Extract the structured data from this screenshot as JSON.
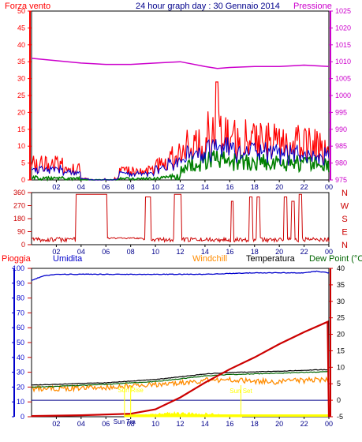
{
  "top_panel": {
    "title": "24 hour graph day : 30 Gennaio 2014",
    "left_label": "Forza vento",
    "right_label": "Pressione",
    "left_ticks": [
      "0",
      "5",
      "10",
      "15",
      "20",
      "25",
      "30",
      "35",
      "40",
      "45",
      "50"
    ],
    "right_ticks": [
      "975",
      "980",
      "985",
      "990",
      "995",
      "1000",
      "1005",
      "1010",
      "1015",
      "1020",
      "1025"
    ],
    "x_ticks": [
      "02",
      "04",
      "06",
      "08",
      "10",
      "12",
      "14",
      "16",
      "18",
      "20",
      "22",
      "00"
    ],
    "colors": {
      "wind": "#ff0000",
      "gust": "#ff0000",
      "avg": "#0000cc",
      "green": "#008000",
      "pressure": "#cc00cc"
    }
  },
  "dir_panel": {
    "left_ticks": [
      "0",
      "90",
      "180",
      "270",
      "360"
    ],
    "compass": [
      "N",
      "W",
      "S",
      "E",
      "N"
    ],
    "x_ticks": [
      "02",
      "04",
      "06",
      "08",
      "10",
      "12",
      "14",
      "16",
      "18",
      "20",
      "22",
      "00"
    ],
    "color": "#cc0000"
  },
  "bottom_panel": {
    "labels": {
      "rain": "Pioggia",
      "humidity": "Umidita",
      "windchill": "Windchill",
      "temperature": "Temperatura",
      "dewpoint": "Dew Point (°C"
    },
    "left_ticks": [
      "0",
      "10",
      "20",
      "30",
      "40",
      "50",
      "60",
      "70",
      "80",
      "90",
      "100"
    ],
    "right_ticks": [
      "-5",
      "0",
      "5",
      "10",
      "15",
      "20",
      "25",
      "30",
      "35",
      "40"
    ],
    "x_ticks": [
      "02",
      "04",
      "06",
      "08",
      "10",
      "12",
      "14",
      "16",
      "18",
      "20",
      "22",
      "00"
    ],
    "annotations": {
      "sun_rise": "Sun Rise",
      "sun_transit": "Sun Tra",
      "sun_set": "Sun Set"
    },
    "colors": {
      "rain": "#cc0000",
      "humidity": "#0000cc",
      "windchill": "#ff8c00",
      "temperature": "#000000",
      "dewpoint": "#006400",
      "solar": "#ffff00"
    }
  },
  "chart_data": [
    {
      "type": "line",
      "title": "24 hour graph day : 30 Gennaio 2014",
      "x_range_hours": [
        0,
        24
      ],
      "left_axis": {
        "label": "Forza vento",
        "range": [
          0,
          50
        ]
      },
      "right_axis": {
        "label": "Pressione",
        "range": [
          975,
          1025
        ]
      },
      "series": [
        {
          "name": "Pressione",
          "x": [
            0,
            2,
            4,
            6,
            8,
            10,
            12,
            14,
            15,
            16,
            18,
            20,
            22,
            24
          ],
          "values": [
            1011,
            1010.3,
            1009.6,
            1009.2,
            1009.2,
            1009.6,
            1010,
            1008.6,
            1008,
            1008.3,
            1008.6,
            1008.6,
            1009,
            1008.6
          ]
        }
      ]
    },
    {
      "type": "line",
      "x_range_hours": [
        0,
        24
      ],
      "left_axis": {
        "range": [
          0,
          360
        ]
      },
      "series": [
        {
          "x": [
            0,
            3.6,
            3.7,
            6.1,
            6.2,
            9.2,
            9.3,
            9.6,
            9.7,
            11.4,
            11.5,
            12.1,
            12.2,
            16.0,
            16.1,
            24
          ],
          "values": [
            20,
            20,
            348,
            348,
            20,
            20,
            330,
            330,
            20,
            20,
            348,
            348,
            20,
            20,
            20,
            20
          ]
        }
      ]
    },
    {
      "type": "line",
      "x_range_hours": [
        0,
        24
      ],
      "left_axis": {
        "label": "Pioggia",
        "range": [
          0,
          100
        ]
      },
      "right_axis": {
        "label": "Temperatura",
        "range": [
          -5,
          40
        ]
      },
      "series": [
        {
          "name": "Pioggia",
          "x": [
            0,
            4,
            8,
            10,
            12,
            14,
            16,
            18,
            20,
            22,
            23.9,
            24
          ],
          "values": [
            0.5,
            1,
            2,
            5,
            13,
            23,
            32,
            40,
            49,
            57,
            64,
            0
          ]
        },
        {
          "name": "Umidita",
          "x": [
            0,
            1,
            2,
            6,
            10,
            14,
            18,
            22,
            23,
            24
          ],
          "values": [
            92,
            95,
            96,
            96,
            96,
            96,
            97,
            97,
            98,
            97
          ]
        },
        {
          "name": "Windchill",
          "x": [
            0,
            2,
            4,
            6,
            8,
            10,
            12,
            14,
            16,
            18,
            20,
            22,
            24
          ],
          "values": [
            3.5,
            3.6,
            3.8,
            3.9,
            4.4,
            4.8,
            5.3,
            6,
            6.2,
            5.8,
            5.6,
            6,
            6.4
          ]
        },
        {
          "name": "Temperatura",
          "x": [
            0,
            2,
            4,
            6,
            8,
            10,
            12,
            14,
            16,
            18,
            20,
            22,
            24
          ],
          "values": [
            4.6,
            4.8,
            5.1,
            5.3,
            5.8,
            6.3,
            7.1,
            8,
            8.4,
            8.6,
            8.8,
            9.1,
            9.3
          ]
        },
        {
          "name": "Dew Point",
          "x": [
            0,
            2,
            4,
            6,
            8,
            10,
            12,
            14,
            16,
            18,
            20,
            22,
            24
          ],
          "values": [
            4.0,
            4.2,
            4.5,
            4.8,
            5.3,
            5.7,
            6.5,
            7.4,
            7.8,
            8.0,
            8.2,
            8.5,
            8.7
          ]
        }
      ]
    }
  ]
}
